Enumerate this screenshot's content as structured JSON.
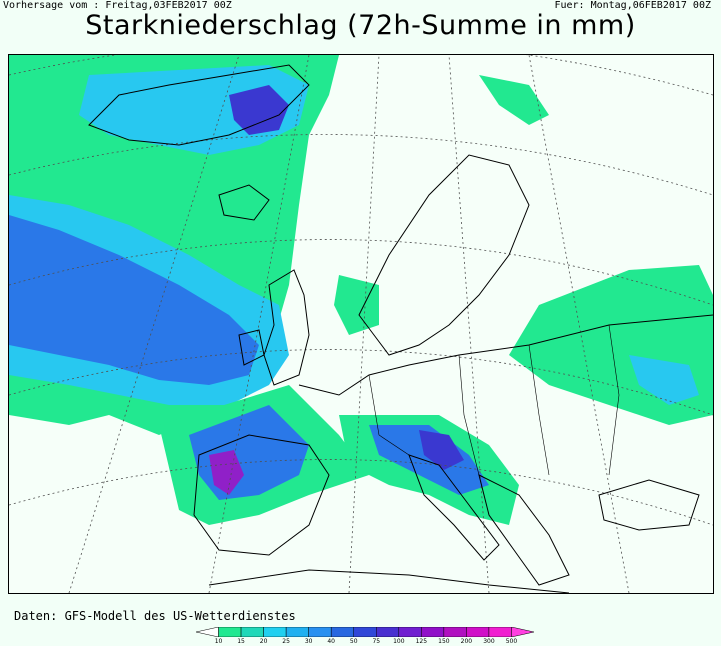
{
  "header": {
    "forecast_from": "Vorhersage vom : Freitag,03FEB2017 00Z",
    "valid_for": "Fuer: Montag,06FEB2017 00Z",
    "title": "Starkniederschlag (72h-Summe in mm)"
  },
  "footer": {
    "source": "Daten: GFS-Modell des US-Wetterdienstes"
  },
  "legend": {
    "labels": [
      "10",
      "15",
      "20",
      "25",
      "30",
      "40",
      "50",
      "75",
      "100",
      "125",
      "150",
      "200",
      "300",
      "500"
    ],
    "colors": [
      "#ffffff",
      "#20e890",
      "#20d8b8",
      "#20d0f0",
      "#20b0f0",
      "#2890f0",
      "#2868e0",
      "#3048d8",
      "#4830d0",
      "#7020d0",
      "#9010c8",
      "#b010c0",
      "#d010c8",
      "#f020d0",
      "#ff40e0"
    ]
  },
  "colors": {
    "background": "#f2fff7",
    "land_line": "#000000",
    "grid_line": "#505050",
    "light_precip": "#22e890",
    "medium_precip": "#28c8f0",
    "heavy_precip": "#2a78e8",
    "very_heavy_precip": "#3a38d0",
    "extreme_precip": "#9020c8"
  }
}
